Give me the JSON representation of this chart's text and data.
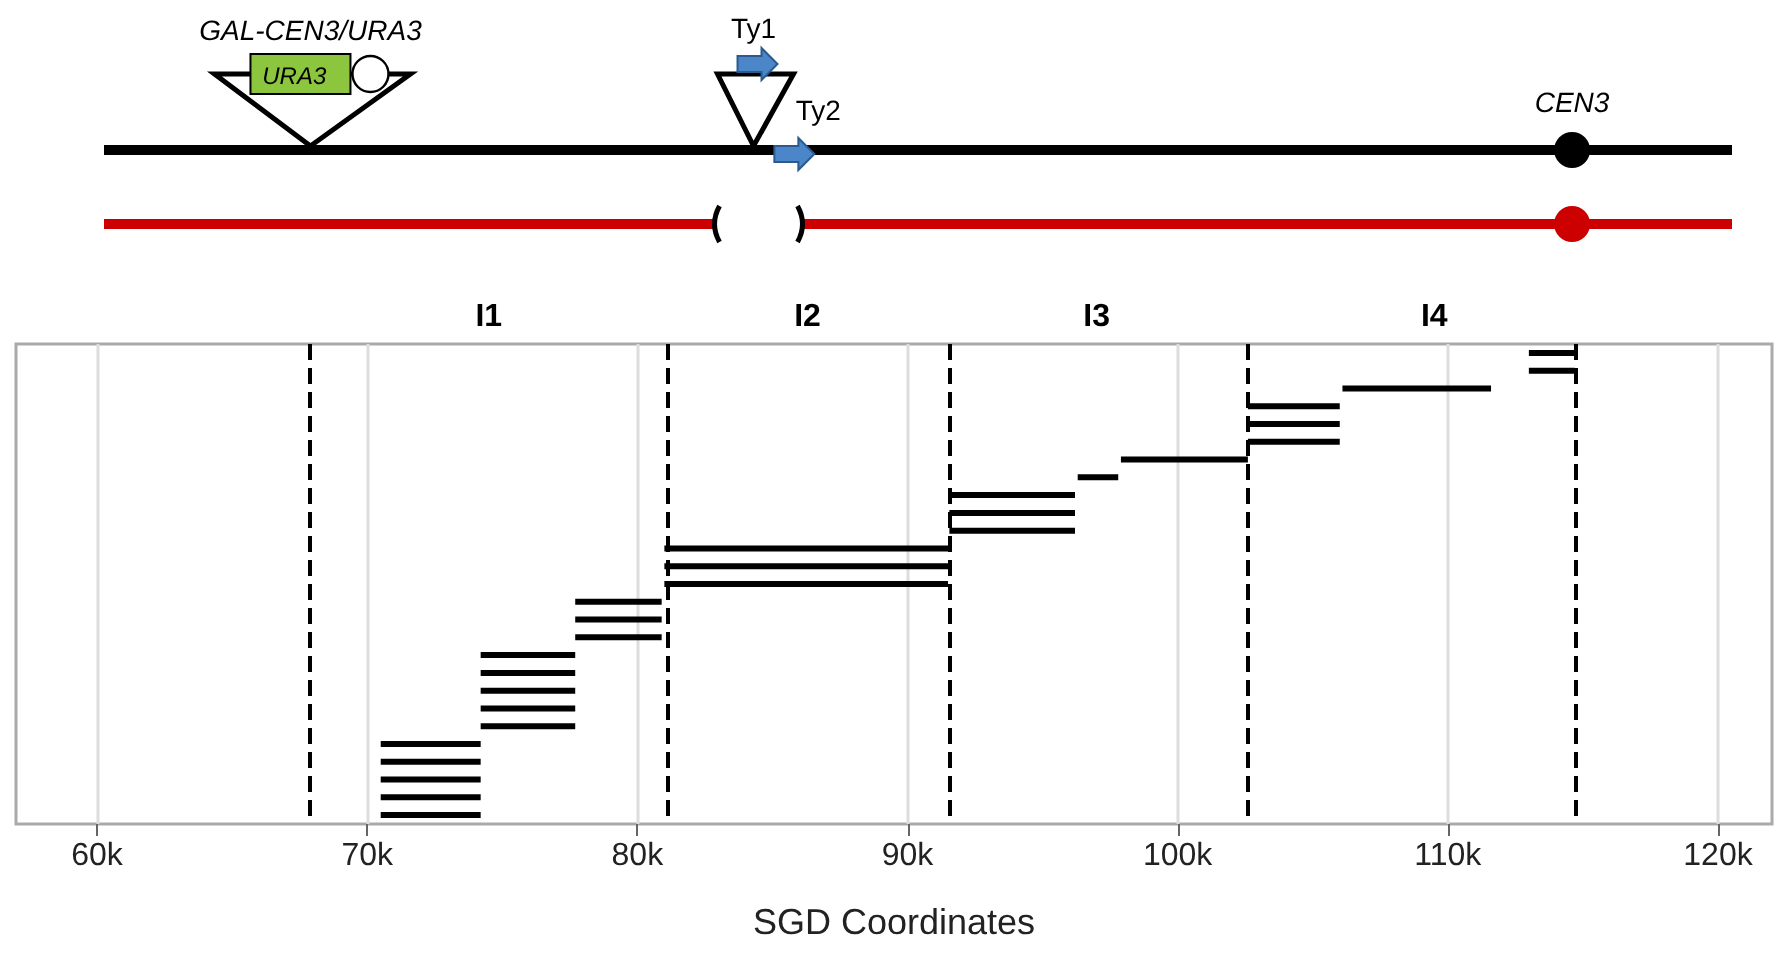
{
  "chart_data": {
    "type": "bar",
    "orientation": "horizontal",
    "xlabel": "SGD Coordinates",
    "categories": [
      null,
      null,
      null,
      null,
      null,
      null,
      null,
      null,
      null,
      null,
      null,
      null,
      null,
      null,
      null,
      null,
      null,
      null,
      null,
      null,
      null,
      null,
      null,
      null,
      null,
      null,
      null
    ],
    "base": [
      113000,
      113000,
      106100,
      102600,
      102600,
      102600,
      97900,
      96300,
      91550,
      91550,
      91550,
      81000,
      81000,
      81000,
      77700,
      77700,
      77700,
      74200,
      74200,
      74200,
      74200,
      74200,
      70500,
      70500,
      70500,
      70500,
      70500
    ],
    "values": [
      1700,
      1700,
      5500,
      3400,
      3400,
      3400,
      4700,
      1500,
      4650,
      4650,
      4650,
      10500,
      10500,
      10500,
      3200,
      3200,
      3200,
      3500,
      3500,
      3500,
      3500,
      3500,
      3700,
      3700,
      3700,
      3700,
      3700
    ],
    "color": "#000000",
    "xlim": [
      57000,
      122000
    ],
    "xticks": [
      {
        "value": 60000,
        "label": "60k"
      },
      {
        "value": 70000,
        "label": "70k"
      },
      {
        "value": 80000,
        "label": "80k"
      },
      {
        "value": 90000,
        "label": "90k"
      },
      {
        "value": 100000,
        "label": "100k"
      },
      {
        "value": 110000,
        "label": "110k"
      },
      {
        "value": 120000,
        "label": "120k"
      }
    ],
    "tick_labels": "x",
    "grid": "x",
    "ref_lines": [
      {
        "axis": "x",
        "value": 67900,
        "color": "#000000",
        "line_style": "dashed"
      },
      {
        "axis": "x",
        "value": 81100,
        "color": "#000000",
        "line_style": "dashed"
      },
      {
        "axis": "x",
        "value": 91550,
        "color": "#000000",
        "line_style": "dashed"
      },
      {
        "axis": "x",
        "value": 102600,
        "color": "#000000",
        "line_style": "dashed"
      },
      {
        "axis": "x",
        "value": 114700,
        "color": "#000000",
        "line_style": "dashed"
      }
    ],
    "annotations": [
      "I1",
      "I2",
      "I3",
      "I4",
      "GAL-CEN3/URA3",
      "URA3",
      "Ty1",
      "Ty2",
      "CEN3"
    ]
  }
}
